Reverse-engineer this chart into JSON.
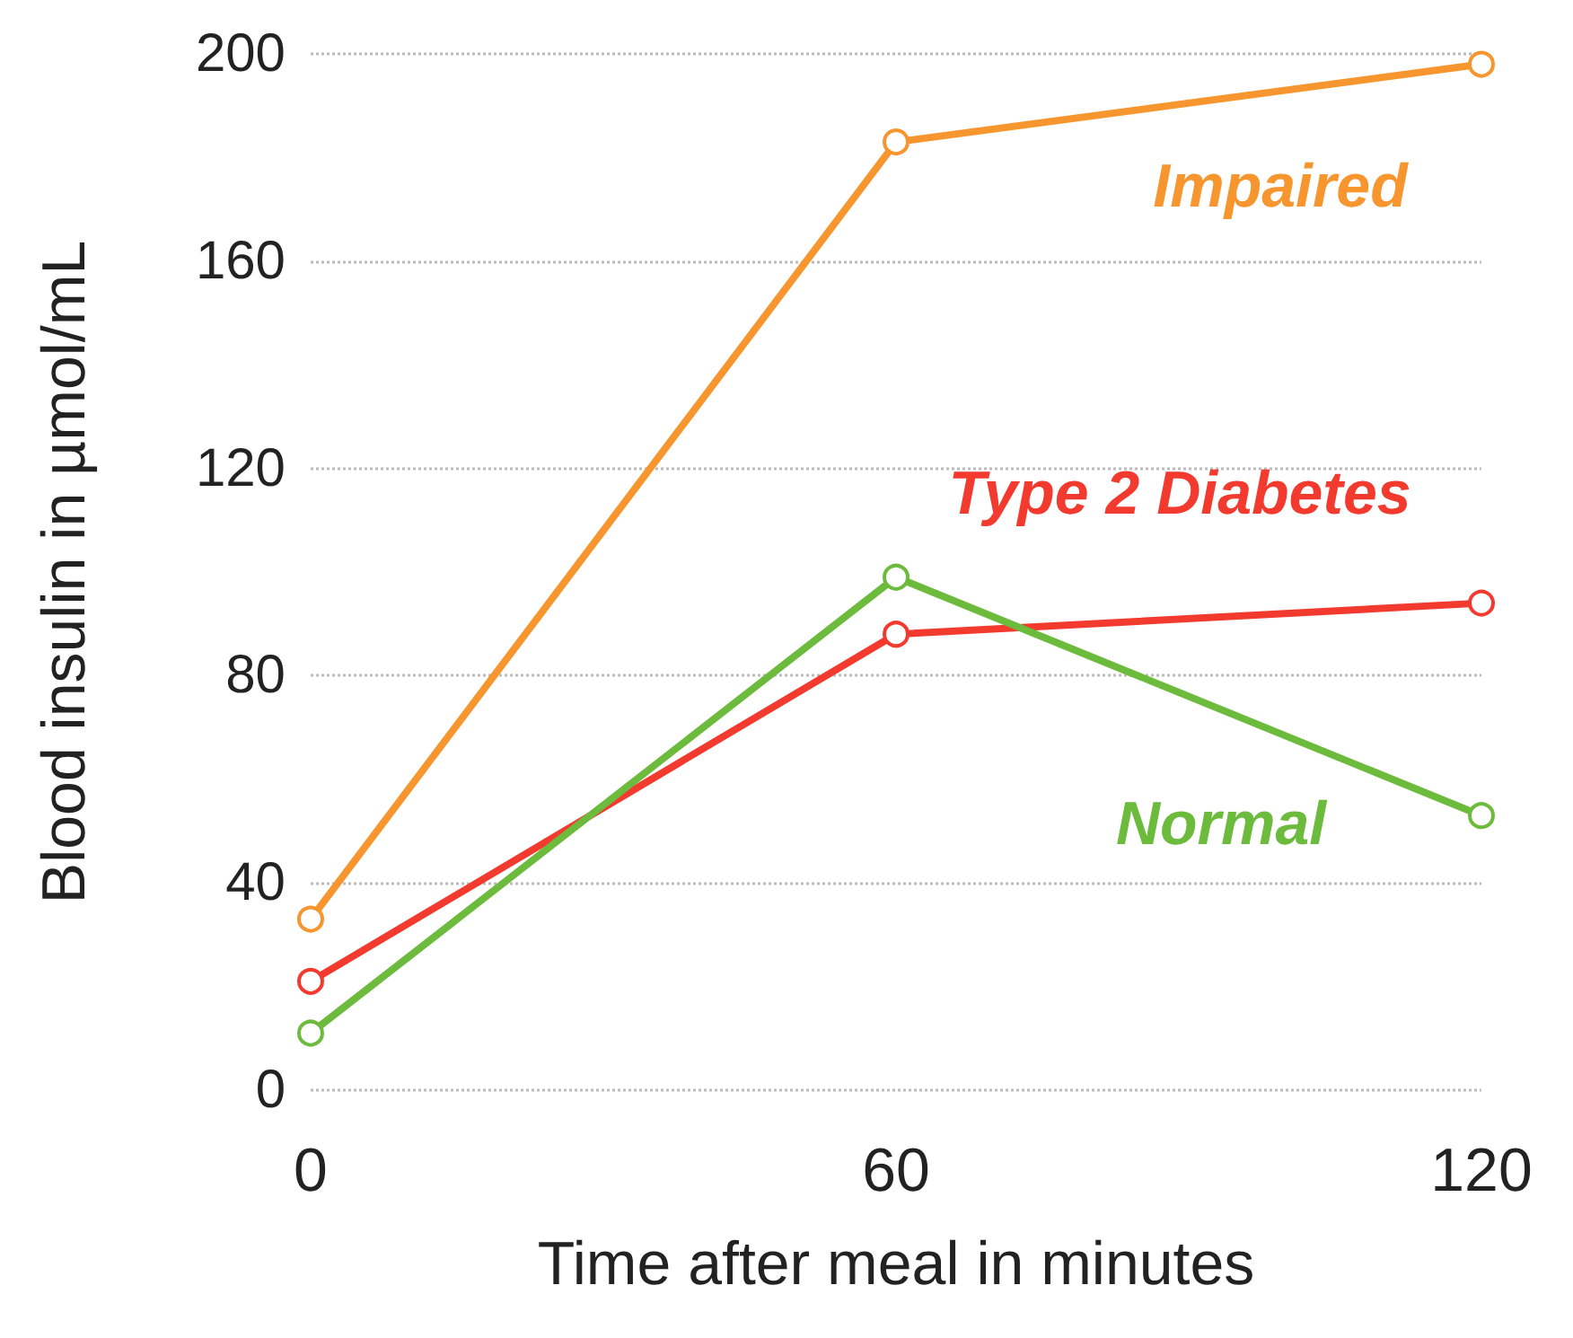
{
  "chart_data": {
    "type": "line",
    "xlabel": "Time after meal in minutes",
    "ylabel": "Blood insulin in µmol/mL",
    "x": [
      0,
      60,
      120
    ],
    "series": [
      {
        "name": "Impaired",
        "color": "#f7962e",
        "values": [
          33,
          183,
          198
        ]
      },
      {
        "name": "Type 2 Diabetes",
        "color": "#f23a2e",
        "values": [
          21,
          88,
          94
        ]
      },
      {
        "name": "Normal",
        "color": "#6cbb3c",
        "values": [
          11,
          99,
          53
        ]
      }
    ],
    "xlim": [
      0,
      120
    ],
    "xticks": [
      0,
      60,
      120
    ],
    "ylim": [
      0,
      200
    ],
    "yticks": [
      0,
      40,
      80,
      120,
      160,
      200
    ],
    "grid": "y",
    "legend": false,
    "marker": "circle",
    "line_style": "solid"
  }
}
